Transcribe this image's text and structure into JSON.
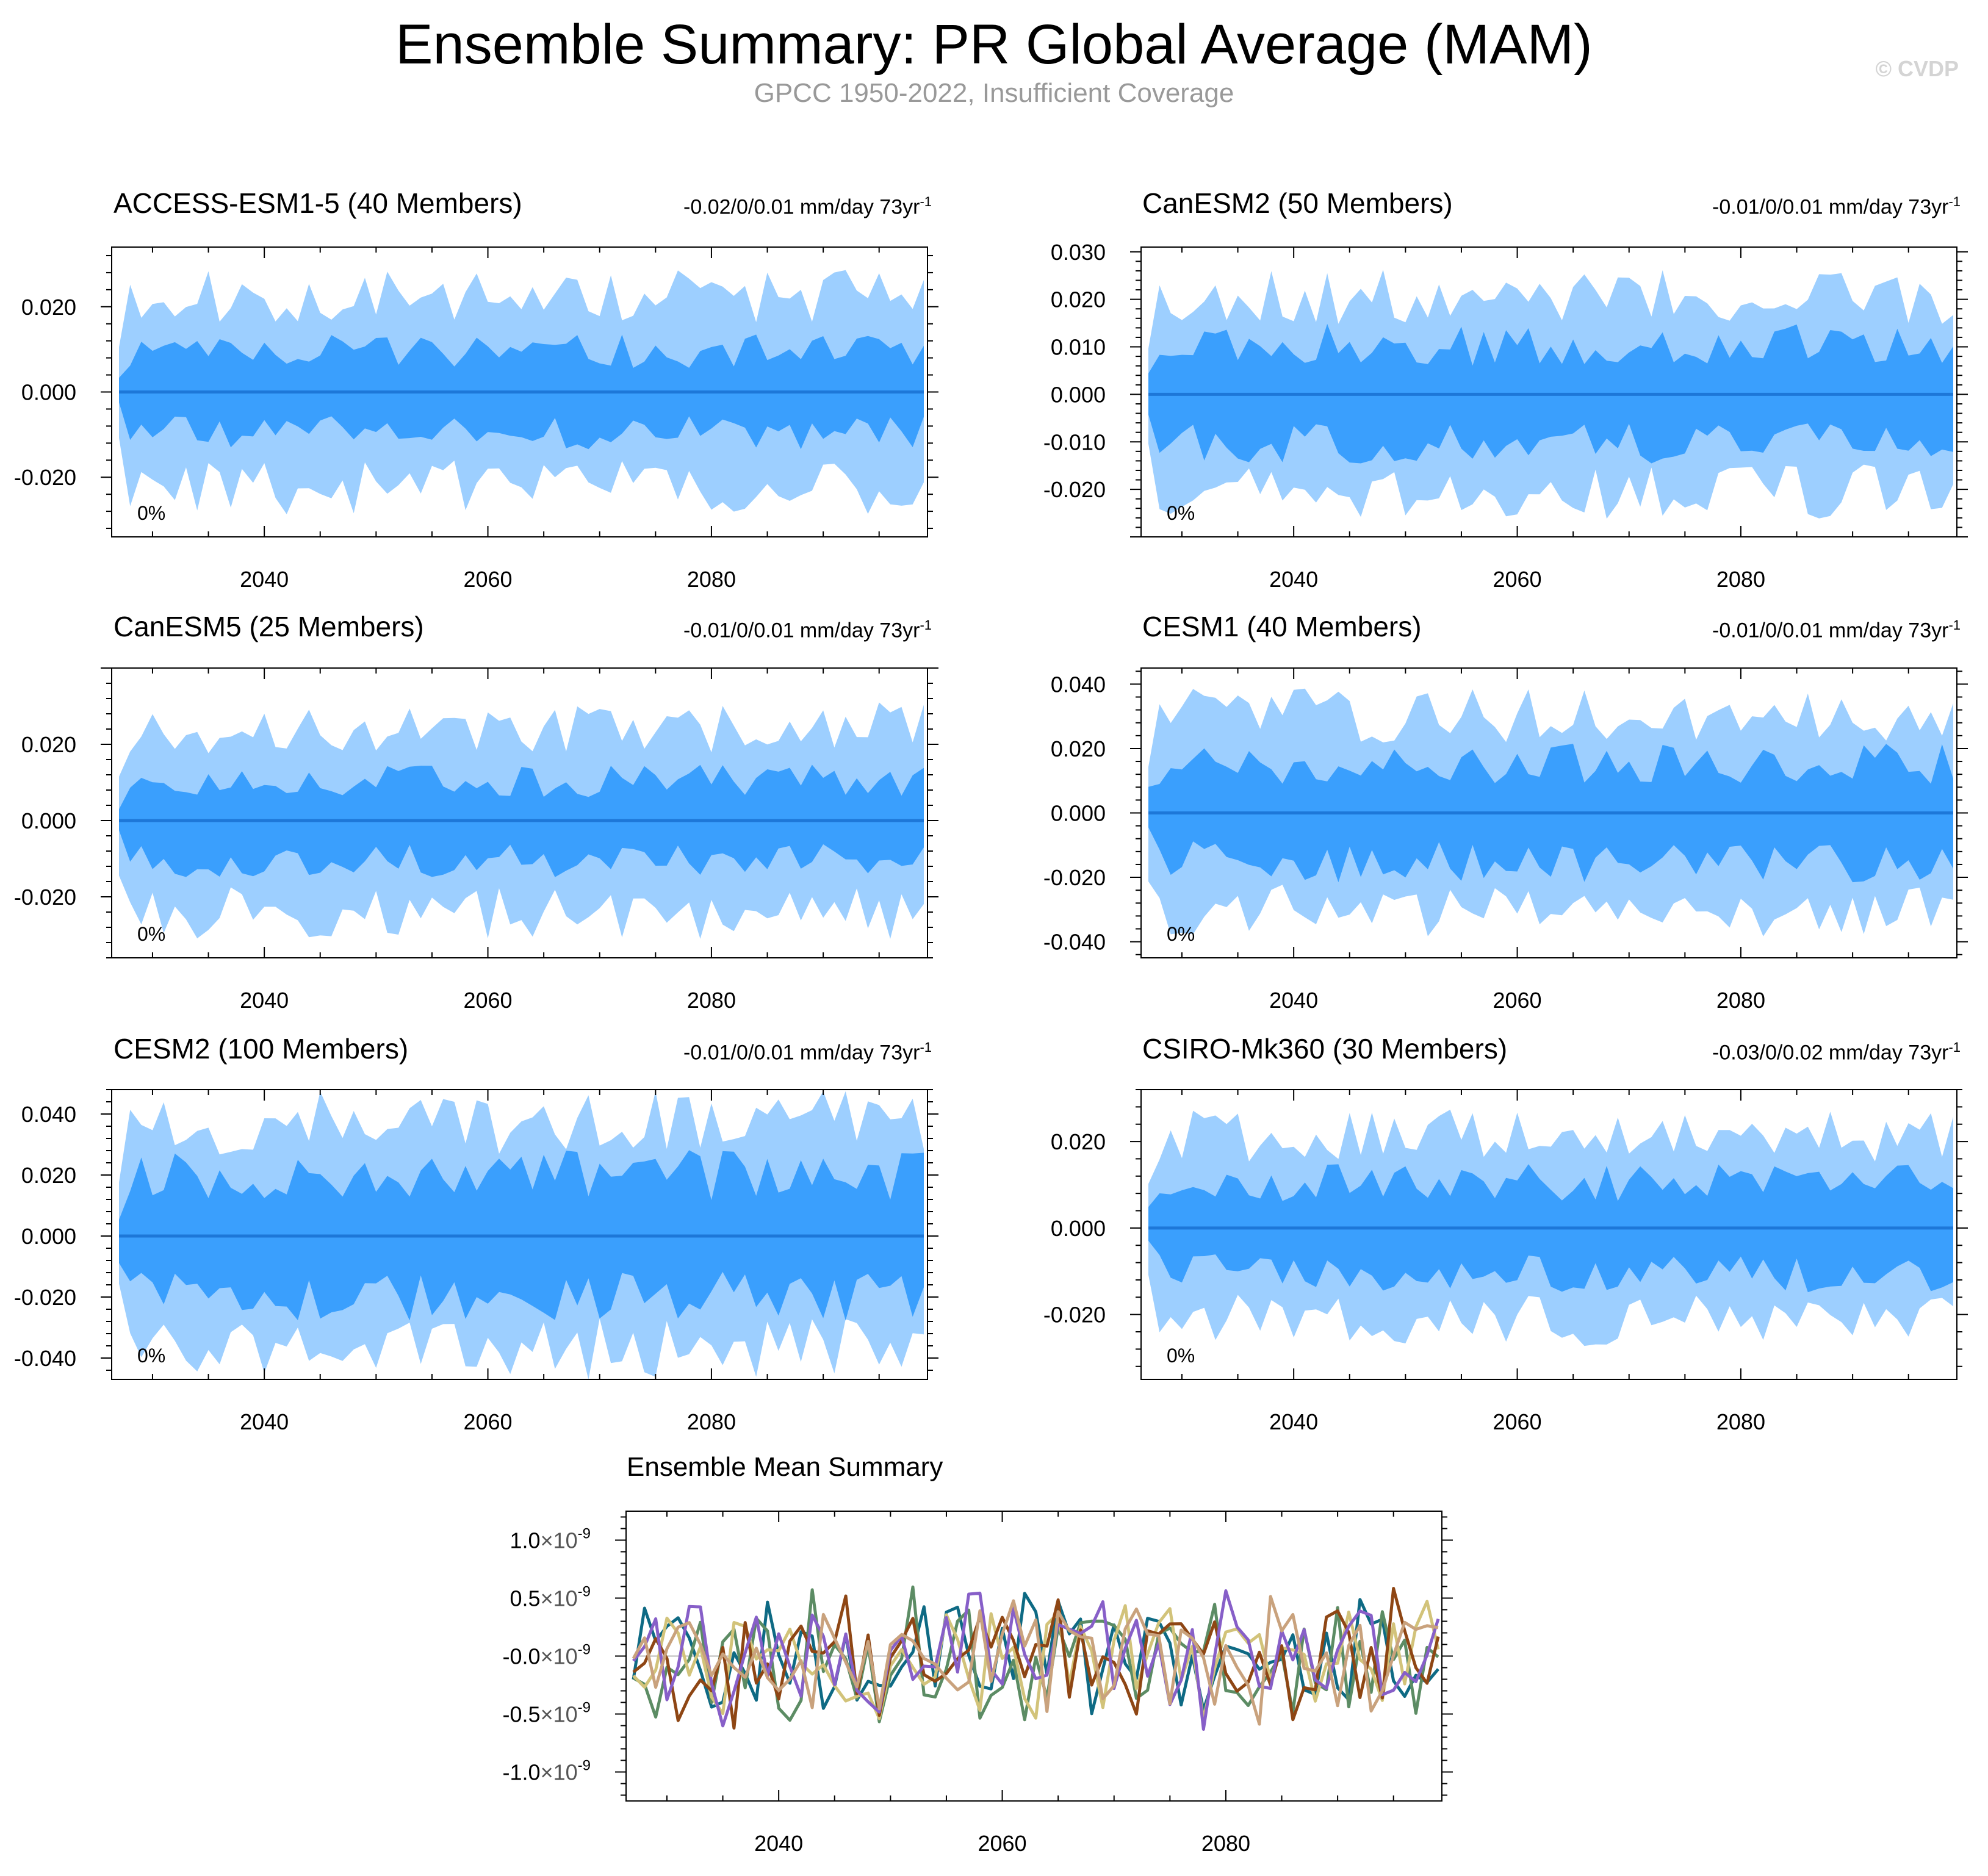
{
  "title": "Ensemble Summary: PR Global Average (MAM)",
  "subtitle": "GPCC 1950-2022, Insufficient Coverage",
  "watermark": "© CVDP",
  "colors": {
    "outer_band": "#9dcfff",
    "inner_band": "#3a9ffd",
    "median_line": "#1d77d8"
  },
  "chart_data": [
    {
      "type": "area",
      "model": "ACCESS-ESM1-5",
      "title": "ACCESS-ESM1-5 (40 Members)",
      "title_color": "#0e6a84",
      "range_label": "-0.02/0/0.01 mm/day 73yr",
      "range_exp": "-1",
      "pct_label": "0%",
      "x_start": 2027,
      "x_end": 2099,
      "ylim": [
        -0.034,
        0.034
      ],
      "yticks": [
        -0.02,
        0.0,
        0.02
      ],
      "ytick_labels": [
        "-0.020",
        "0.000",
        "0.020"
      ],
      "xticks": [
        2040,
        2060,
        2080
      ],
      "xtick_labels": [
        "2040",
        "2060",
        "2080"
      ],
      "outer_amplitude": 0.023,
      "inner_amplitude": 0.01,
      "seed": 11
    },
    {
      "type": "area",
      "model": "CanESM2",
      "title": "CanESM2 (50 Members)",
      "title_color": "#5c8c64",
      "range_label": "-0.01/0/0.01 mm/day 73yr",
      "range_exp": "-1",
      "pct_label": "0%",
      "x_start": 2027,
      "x_end": 2099,
      "ylim": [
        -0.03,
        0.031
      ],
      "yticks": [
        -0.02,
        -0.01,
        0.0,
        0.01,
        0.02,
        0.03
      ],
      "ytick_labels": [
        "-0.020",
        "-0.010",
        "0.000",
        "0.010",
        "0.020",
        "0.030"
      ],
      "xticks": [
        2040,
        2060,
        2080
      ],
      "xtick_labels": [
        "2040",
        "2060",
        "2080"
      ],
      "outer_amplitude": 0.021,
      "inner_amplitude": 0.011,
      "seed": 23
    },
    {
      "type": "area",
      "model": "CanESM5",
      "title": "CanESM5 (25 Members)",
      "title_color": "#d2c37a",
      "range_label": "-0.01/0/0.01 mm/day 73yr",
      "range_exp": "-1",
      "pct_label": "0%",
      "x_start": 2027,
      "x_end": 2099,
      "ylim": [
        -0.036,
        0.04
      ],
      "yticks": [
        -0.02,
        0.0,
        0.02
      ],
      "ytick_labels": [
        "-0.020",
        "0.000",
        "0.020"
      ],
      "xticks": [
        2040,
        2060,
        2080
      ],
      "xtick_labels": [
        "2040",
        "2060",
        "2080"
      ],
      "outer_amplitude": 0.025,
      "inner_amplitude": 0.011,
      "seed": 37
    },
    {
      "type": "area",
      "model": "CESM1",
      "title": "CESM1 (40 Members)",
      "title_color": "#8e4614",
      "range_label": "-0.01/0/0.01 mm/day 73yr",
      "range_exp": "-1",
      "pct_label": "0%",
      "x_start": 2027,
      "x_end": 2099,
      "ylim": [
        -0.045,
        0.045
      ],
      "yticks": [
        -0.04,
        -0.02,
        0.0,
        0.02,
        0.04
      ],
      "ytick_labels": [
        "-0.040",
        "-0.020",
        "0.000",
        "0.020",
        "0.040"
      ],
      "xticks": [
        2040,
        2060,
        2080
      ],
      "xtick_labels": [
        "2040",
        "2060",
        "2080"
      ],
      "outer_amplitude": 0.031,
      "inner_amplitude": 0.016,
      "seed": 41
    },
    {
      "type": "area",
      "model": "CESM2",
      "title": "CESM2 (100 Members)",
      "title_color": "#875fc8",
      "range_label": "-0.01/0/0.01 mm/day 73yr",
      "range_exp": "-1",
      "pct_label": "0%",
      "x_start": 2027,
      "x_end": 2099,
      "ylim": [
        -0.047,
        0.048
      ],
      "yticks": [
        -0.04,
        -0.02,
        0.0,
        0.02,
        0.04
      ],
      "ytick_labels": [
        "-0.040",
        "-0.020",
        "0.000",
        "0.020",
        "0.040"
      ],
      "xticks": [
        2040,
        2060,
        2080
      ],
      "xtick_labels": [
        "2040",
        "2060",
        "2080"
      ],
      "outer_amplitude": 0.038,
      "inner_amplitude": 0.021,
      "seed": 53
    },
    {
      "type": "area",
      "model": "CSIRO-Mk360",
      "title": "CSIRO-Mk360 (30 Members)",
      "title_color": "#c9a27d",
      "range_label": "-0.03/0/0.02 mm/day 73yr",
      "range_exp": "-1",
      "pct_label": "0%",
      "x_start": 2027,
      "x_end": 2099,
      "ylim": [
        -0.035,
        0.032
      ],
      "yticks": [
        -0.02,
        0.0,
        0.02
      ],
      "ytick_labels": [
        "-0.020",
        "0.000",
        "0.020"
      ],
      "xticks": [
        2040,
        2060,
        2080
      ],
      "xtick_labels": [
        "2040",
        "2060",
        "2080"
      ],
      "outer_amplitude": 0.022,
      "inner_amplitude": 0.011,
      "seed": 67
    },
    {
      "type": "line",
      "title": "Ensemble Mean Summary",
      "x_start": 2027,
      "x_end": 2099,
      "ylim": [
        -1.25e-09,
        1.25e-09
      ],
      "yticks": [
        -1e-09,
        -5e-10,
        0.0,
        5e-10,
        1e-09
      ],
      "ytick_mantissa": [
        "-1.0",
        "-0.5",
        "-0.0",
        "0.5",
        "1.0"
      ],
      "ytick_times": "×10",
      "ytick_exp": "-9",
      "xticks": [
        2040,
        2060,
        2080
      ],
      "xtick_labels": [
        "2040",
        "2060",
        "2080"
      ],
      "series": [
        {
          "name": "ACCESS-ESM1-5",
          "color": "#0e6a84",
          "seed": 101
        },
        {
          "name": "CanESM2",
          "color": "#5c8c64",
          "seed": 202
        },
        {
          "name": "CanESM5",
          "color": "#d2c37a",
          "seed": 303
        },
        {
          "name": "CESM1",
          "color": "#8e4614",
          "seed": 404
        },
        {
          "name": "CESM2",
          "color": "#875fc8",
          "seed": 505
        },
        {
          "name": "CSIRO-Mk360",
          "color": "#c9a27d",
          "seed": 606
        }
      ],
      "amplitude": 4.5e-10
    }
  ]
}
